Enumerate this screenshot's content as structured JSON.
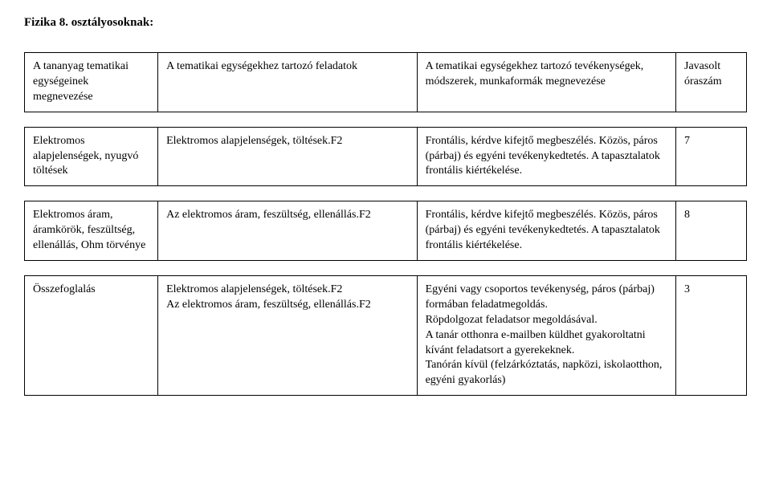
{
  "title": "Fizika 8. osztályosoknak:",
  "headers": {
    "c1": "A tananyag tematikai egységeinek megnevezése",
    "c2": "A tematikai egységekhez tartozó feladatok",
    "c3": "A tematikai egységekhez tartozó tevékenységek, módszerek, munkaformák megnevezése",
    "c4": "Javasolt óraszám"
  },
  "rows": [
    {
      "c1": "Elektromos alapjelenségek, nyugvó töltések",
      "c2": "Elektromos alapjelenségek, töltések.F2",
      "c3": "Frontális, kérdve kifejtő megbeszélés. Közös, páros (párbaj) és egyéni tevékenykedtetés. A tapasztalatok frontális kiértékelése.",
      "c4": "7"
    },
    {
      "c1": "Elektromos áram, áramkörök, feszültség, ellenállás, Ohm törvénye",
      "c2": "Az elektromos áram, feszültség, ellenállás.F2",
      "c3": "Frontális, kérdve kifejtő megbeszélés. Közös, páros (párbaj) és egyéni tevékenykedtetés. A tapasztalatok frontális kiértékelése.",
      "c4": "8"
    },
    {
      "c1": "Összefoglalás",
      "c2": "Elektromos alapjelenségek, töltések.F2\nAz elektromos áram, feszültség, ellenállás.F2",
      "c3": "Egyéni vagy csoportos tevékenység, páros (párbaj) formában feladatmegoldás.\nRöpdolgozat feladatsor megoldásával.\nA tanár otthonra e-mailben küldhet gyakoroltatni kívánt feladatsort a gyerekeknek.\nTanórán kívül (felzárkóztatás, napközi, iskolaotthon, egyéni gyakorlás)",
      "c4": "3"
    }
  ]
}
